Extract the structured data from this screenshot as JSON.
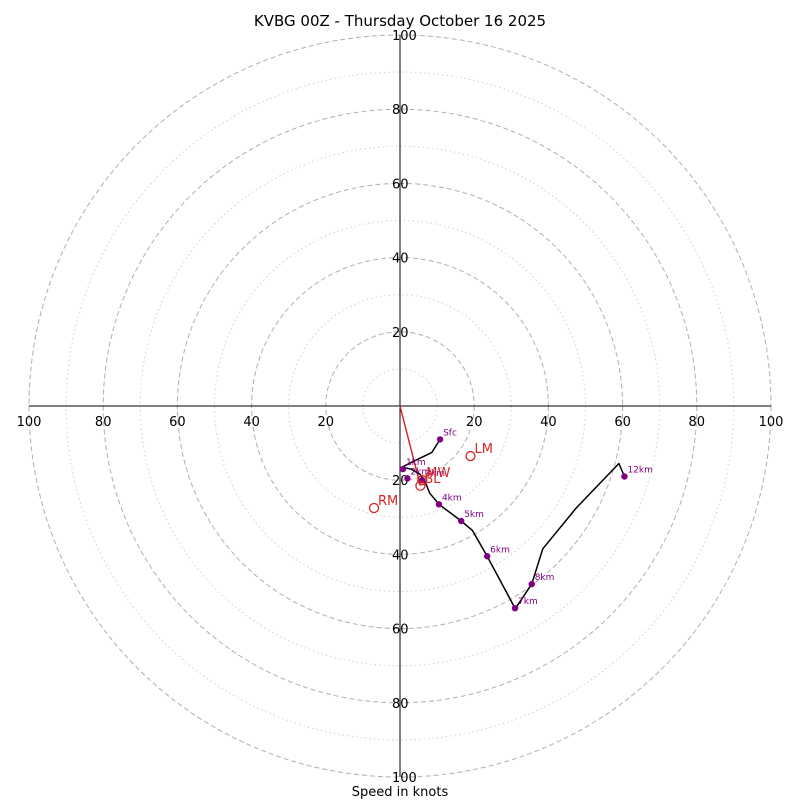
{
  "chart_data": {
    "type": "hodograph",
    "title": "KVBG 00Z - Thursday October 16 2025",
    "xlabel": "Speed in knots",
    "range": [
      -100,
      100
    ],
    "ring_major": [
      20,
      40,
      60,
      80,
      100
    ],
    "ring_minor": [
      10,
      30,
      50,
      70,
      90
    ],
    "ticks": {
      "x_left": [
        "100",
        "80",
        "60",
        "40",
        "20"
      ],
      "x_right": [
        "20",
        "40",
        "60",
        "80",
        "100"
      ],
      "y_top": [
        "100",
        "80",
        "60",
        "40",
        "20"
      ],
      "y_bottom": [
        "20",
        "40",
        "60",
        "80",
        "100"
      ]
    },
    "tick_values": [
      100,
      80,
      60,
      40,
      20
    ],
    "trace": [
      {
        "u": 10.8,
        "v": -9.0
      },
      {
        "u": 8.6,
        "v": -12.5
      },
      {
        "u": 3.5,
        "v": -15.0
      },
      {
        "u": 0.5,
        "v": -16.5
      },
      {
        "u": 3.0,
        "v": -17.0
      },
      {
        "u": 5.5,
        "v": -18.5
      },
      {
        "u": 7.0,
        "v": -21.0
      },
      {
        "u": 8.0,
        "v": -23.5
      },
      {
        "u": 10.5,
        "v": -26.5
      },
      {
        "u": 16.5,
        "v": -31.0
      },
      {
        "u": 19.5,
        "v": -33.5
      },
      {
        "u": 23.5,
        "v": -40.5
      },
      {
        "u": 31.0,
        "v": -54.5
      },
      {
        "u": 31.5,
        "v": -54.0
      },
      {
        "u": 35.5,
        "v": -48.0
      },
      {
        "u": 38.5,
        "v": -38.5
      },
      {
        "u": 47.5,
        "v": -27.5
      },
      {
        "u": 59.0,
        "v": -15.5
      },
      {
        "u": 60.5,
        "v": -19.0
      }
    ],
    "height_markers": [
      {
        "label": "Sfc",
        "u": 10.8,
        "v": -9.0
      },
      {
        "label": "1km",
        "u": 0.8,
        "v": -17.0
      },
      {
        "label": "2km",
        "u": 2.0,
        "v": -19.5
      },
      {
        "label": "3km",
        "u": 6.0,
        "v": -20.0
      },
      {
        "label": "4km",
        "u": 10.5,
        "v": -26.5
      },
      {
        "label": "5km",
        "u": 16.5,
        "v": -31.0
      },
      {
        "label": "6km",
        "u": 23.5,
        "v": -40.5
      },
      {
        "label": "7km",
        "u": 31.0,
        "v": -54.5
      },
      {
        "label": "8km",
        "u": 35.5,
        "v": -48.0
      },
      {
        "label": "12km",
        "u": 60.5,
        "v": -19.0
      }
    ],
    "storm_markers": [
      {
        "label": "LM",
        "u": 19.0,
        "v": -13.5
      },
      {
        "label": "RM",
        "u": -7.0,
        "v": -27.5
      },
      {
        "label": "MW",
        "u": 6.0,
        "v": -20.0
      },
      {
        "label": "BL",
        "u": 5.5,
        "v": -21.5
      }
    ],
    "shear_vector": {
      "from": {
        "u": 0,
        "v": 0
      },
      "to": {
        "u": 5.5,
        "v": -21.5
      }
    },
    "colors": {
      "trace": "#000000",
      "height": "#800080",
      "storm": "#d62728",
      "ring": "#b0b0b0",
      "axis": "#000000"
    }
  }
}
